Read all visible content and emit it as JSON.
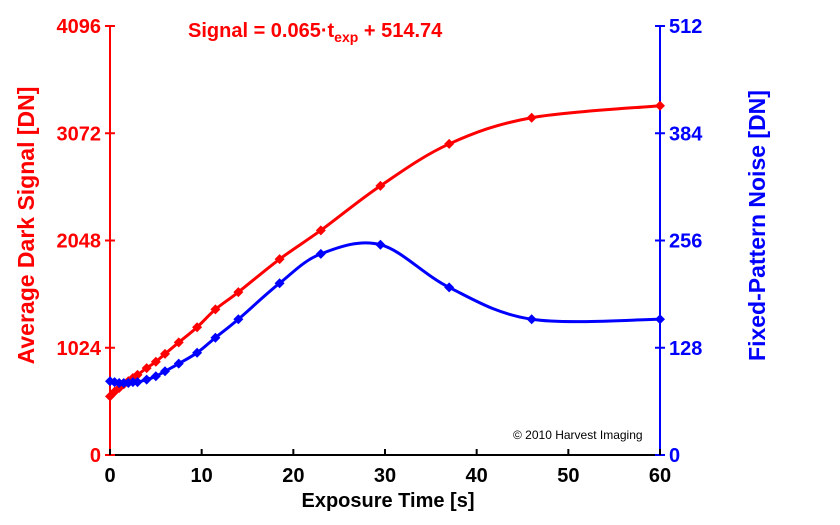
{
  "chart_data": {
    "type": "line",
    "xlabel": "Exposure Time [s]",
    "ylabel_left": "Average Dark Signal [DN]",
    "ylabel_right": "Fixed-Pattern Noise [DN]",
    "xlim": [
      0,
      60
    ],
    "ylim_left": [
      0,
      4096
    ],
    "ylim_right": [
      0,
      512
    ],
    "x_ticks": [
      "0",
      "10",
      "20",
      "30",
      "40",
      "50",
      "60"
    ],
    "y_left_ticks": [
      "0",
      "1024",
      "2048",
      "3072",
      "4096"
    ],
    "y_right_ticks": [
      "0",
      "128",
      "256",
      "384",
      "512"
    ],
    "annotation": {
      "prefix": "Signal = 0.065·t",
      "subscript": "exp",
      "suffix": " + 514.74"
    },
    "copyright": "© 2010 Harvest Imaging",
    "colors": {
      "left_series": "#ff0000",
      "right_series": "#0000ff"
    },
    "series": [
      {
        "axis": "left",
        "marker": "diamond",
        "x": [
          0,
          0.5,
          1,
          1.5,
          2,
          2.5,
          3,
          4,
          5,
          6,
          7.5,
          9.5,
          11.5,
          14,
          18.5,
          23,
          29.5,
          37,
          46,
          60
        ],
        "values": [
          560,
          605,
          640,
          675,
          705,
          735,
          765,
          830,
          890,
          965,
          1075,
          1220,
          1390,
          1555,
          1870,
          2145,
          2570,
          2970,
          3220,
          3335
        ]
      },
      {
        "axis": "right",
        "marker": "diamond",
        "x": [
          0,
          0.5,
          1,
          1.5,
          2,
          2.5,
          3,
          4,
          5,
          6,
          7.5,
          9.5,
          11.5,
          14,
          18.5,
          23,
          29.5,
          37,
          46,
          60
        ],
        "values": [
          88,
          87,
          86,
          86,
          86,
          87,
          87,
          90,
          94,
          100,
          109,
          122,
          140,
          162,
          205,
          240,
          251,
          200,
          162,
          162
        ]
      }
    ]
  }
}
